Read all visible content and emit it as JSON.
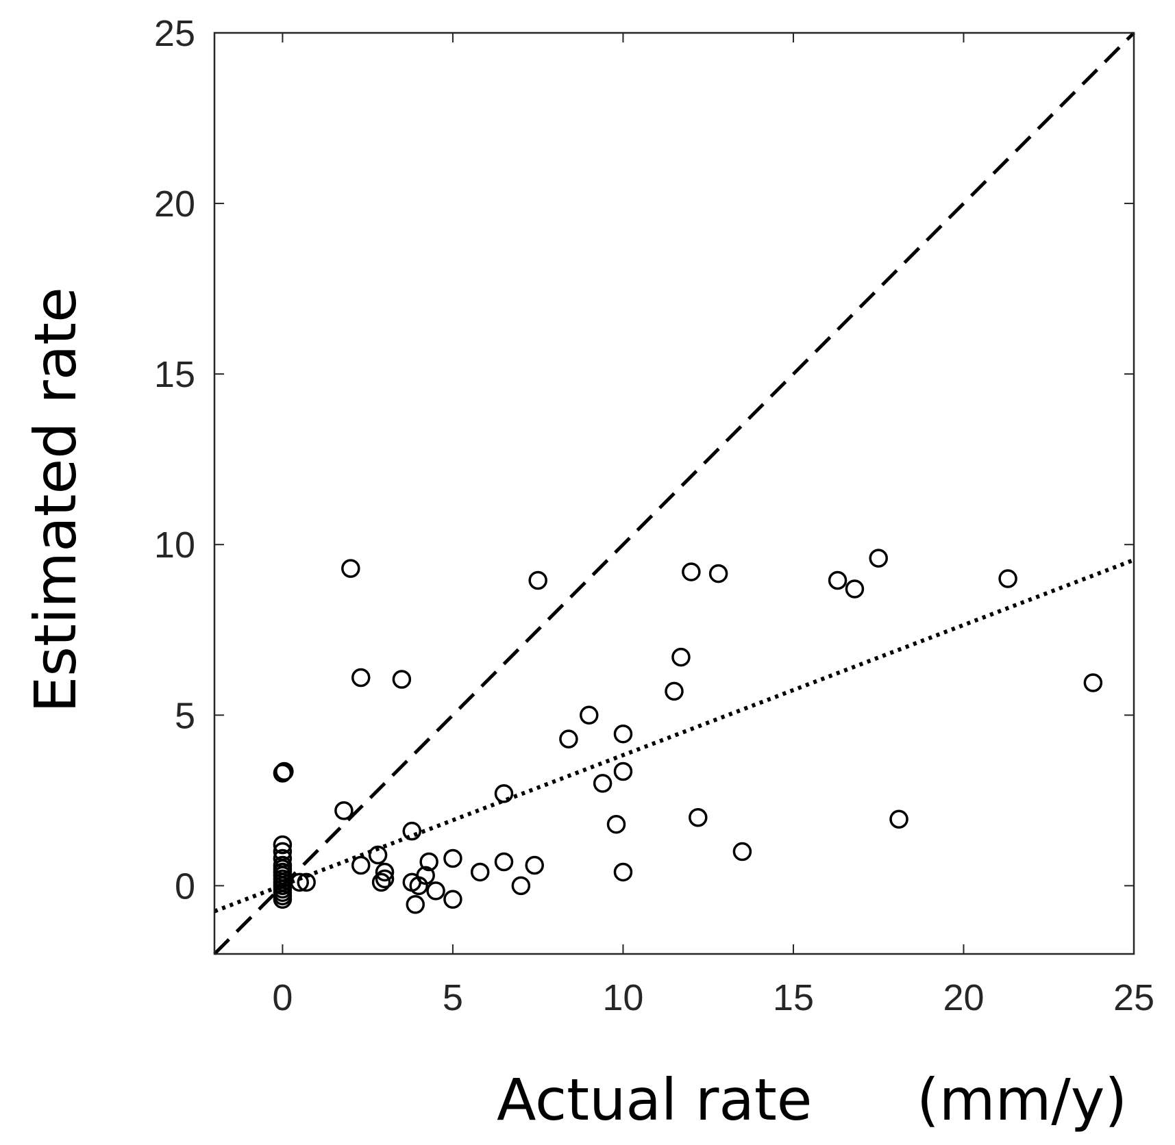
{
  "chart_data": {
    "type": "scatter",
    "title": "",
    "xlabel": "Actual rate",
    "xlabel_unit": "(mm/y)",
    "ylabel": "Estimated rate",
    "xlim": [
      -2,
      25
    ],
    "ylim": [
      -2,
      25
    ],
    "xticks": [
      0,
      5,
      10,
      15,
      20,
      25
    ],
    "yticks": [
      0,
      5,
      10,
      15,
      20,
      25
    ],
    "grid": false,
    "colors": {
      "marker": "#000000",
      "axis": "#262626",
      "background": "#ffffff"
    },
    "reference_lines": [
      {
        "name": "one-to-one",
        "style": "dashed",
        "x": [
          -2,
          25
        ],
        "y": [
          -2,
          25
        ]
      },
      {
        "name": "regression-fit",
        "style": "dotted",
        "x": [
          -2,
          25
        ],
        "y": [
          -0.75,
          9.55
        ]
      }
    ],
    "series": [
      {
        "name": "observations",
        "marker": "open-circle",
        "points": [
          [
            0,
            3.3
          ],
          [
            0.05,
            3.35
          ],
          [
            0,
            1.2
          ],
          [
            0,
            1.0
          ],
          [
            0,
            0.8
          ],
          [
            0,
            0.6
          ],
          [
            0,
            0.5
          ],
          [
            0,
            0.4
          ],
          [
            0,
            0.3
          ],
          [
            0,
            0.2
          ],
          [
            0,
            0.1
          ],
          [
            0,
            0.0
          ],
          [
            0,
            -0.1
          ],
          [
            0,
            -0.2
          ],
          [
            0,
            -0.3
          ],
          [
            0,
            -0.4
          ],
          [
            0.5,
            0.1
          ],
          [
            0.7,
            0.1
          ],
          [
            1.8,
            2.2
          ],
          [
            2.0,
            9.3
          ],
          [
            2.3,
            6.1
          ],
          [
            2.3,
            0.6
          ],
          [
            2.8,
            0.9
          ],
          [
            2.9,
            0.1
          ],
          [
            3.0,
            0.4
          ],
          [
            3.0,
            0.2
          ],
          [
            3.5,
            6.05
          ],
          [
            3.8,
            1.6
          ],
          [
            3.8,
            0.1
          ],
          [
            3.9,
            -0.55
          ],
          [
            4.0,
            0.0
          ],
          [
            4.2,
            0.3
          ],
          [
            4.3,
            0.7
          ],
          [
            4.5,
            -0.15
          ],
          [
            5.0,
            0.8
          ],
          [
            5.0,
            -0.4
          ],
          [
            5.8,
            0.4
          ],
          [
            6.5,
            0.7
          ],
          [
            6.5,
            2.7
          ],
          [
            7.0,
            0.0
          ],
          [
            7.4,
            0.6
          ],
          [
            7.5,
            8.95
          ],
          [
            8.4,
            4.3
          ],
          [
            9.0,
            5.0
          ],
          [
            9.4,
            3.0
          ],
          [
            9.8,
            1.8
          ],
          [
            10.0,
            4.45
          ],
          [
            10.0,
            3.35
          ],
          [
            10.0,
            0.4
          ],
          [
            11.5,
            5.7
          ],
          [
            11.7,
            6.7
          ],
          [
            12.0,
            9.2
          ],
          [
            12.2,
            2.0
          ],
          [
            12.8,
            9.15
          ],
          [
            13.5,
            1.0
          ],
          [
            16.3,
            8.95
          ],
          [
            16.8,
            8.7
          ],
          [
            17.5,
            9.6
          ],
          [
            18.1,
            1.95
          ],
          [
            21.3,
            9.0
          ],
          [
            23.8,
            5.95
          ]
        ]
      }
    ]
  }
}
